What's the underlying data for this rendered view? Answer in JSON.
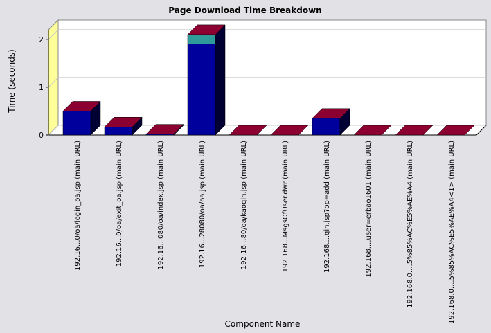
{
  "chart_data": {
    "type": "bar",
    "title": "Page Download Time Breakdown",
    "xlabel": "Component Name",
    "ylabel": "Time (seconds)",
    "ylim": [
      0,
      2.2
    ],
    "yticks": [
      0,
      1,
      2
    ],
    "categories": [
      "192.16...0/oa/login_oa.jsp (main URL)",
      "192.16...0/oa/exit_oa.jsp (main URL)",
      "192.16...080/oa/index.jsp (main URL)",
      "192.16...28080/oa/oa.jsp (main URL)",
      "192.16...80/oa/kaoqin.jsp (main URL)",
      "192.168...MsgsOfUser.dwr (main URL)",
      "192.168....qin.jsp?op=add (main URL)",
      "192.168....user=erbao1601 (main URL)",
      "192.168.0....5%85%AC%E5%AE%A4 (main URL)",
      "192.168.0....5%85%AC%E5%AE%A4<1> (main URL)"
    ],
    "series": [
      {
        "values": [
          0.5,
          0.17,
          0.02,
          1.9,
          0.0,
          0.0,
          0.35,
          0.0,
          0.0,
          0.0
        ],
        "color": "#00009c"
      },
      {
        "values": [
          0.0,
          0.0,
          0.0,
          0.2,
          0.0,
          0.0,
          0.0,
          0.0,
          0.0,
          0.0
        ],
        "color": "#2f9a9a"
      }
    ],
    "cap_color": "#8b0030",
    "side_color": "#000033",
    "wall_color": "#ffff99",
    "plot_bg": "#ffffff",
    "grid": true,
    "legend": "none"
  }
}
